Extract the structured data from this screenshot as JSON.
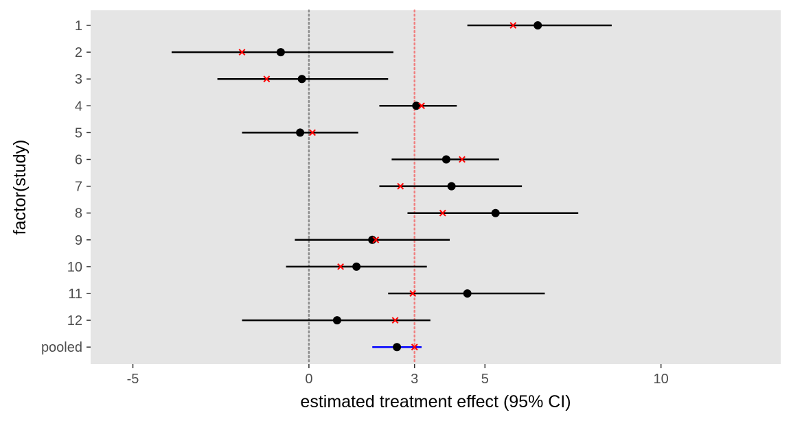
{
  "chart_data": {
    "type": "forest",
    "xlabel": "estimated treatment effect (95% CI)",
    "ylabel": "factor(study)",
    "xlim": [
      -6.2,
      13.4
    ],
    "x_ticks": [
      {
        "value": -5,
        "label": "-5"
      },
      {
        "value": 0,
        "label": "0"
      },
      {
        "value": 3,
        "label": "3"
      },
      {
        "value": 5,
        "label": "5"
      },
      {
        "value": 10,
        "label": "10"
      }
    ],
    "reference_lines": [
      {
        "name": "null-effect-line",
        "x": 0,
        "color": "#8c8c8c"
      },
      {
        "name": "pooled-estimate-line",
        "x": 3,
        "color": "#f08080"
      }
    ],
    "studies": [
      {
        "label": "1",
        "estimate": 6.5,
        "lower": 4.5,
        "upper": 8.6,
        "alt_estimate": 5.8
      },
      {
        "label": "2",
        "estimate": -0.8,
        "lower": -3.9,
        "upper": 2.4,
        "alt_estimate": -1.9
      },
      {
        "label": "3",
        "estimate": -0.2,
        "lower": -2.6,
        "upper": 2.25,
        "alt_estimate": -1.2
      },
      {
        "label": "4",
        "estimate": 3.05,
        "lower": 2.0,
        "upper": 4.2,
        "alt_estimate": 3.2
      },
      {
        "label": "5",
        "estimate": -0.25,
        "lower": -1.9,
        "upper": 1.4,
        "alt_estimate": 0.1
      },
      {
        "label": "6",
        "estimate": 3.9,
        "lower": 2.35,
        "upper": 5.4,
        "alt_estimate": 4.35
      },
      {
        "label": "7",
        "estimate": 4.05,
        "lower": 2.0,
        "upper": 6.05,
        "alt_estimate": 2.6
      },
      {
        "label": "8",
        "estimate": 5.3,
        "lower": 2.8,
        "upper": 7.65,
        "alt_estimate": 3.8
      },
      {
        "label": "9",
        "estimate": 1.8,
        "lower": -0.4,
        "upper": 4.0,
        "alt_estimate": 1.9
      },
      {
        "label": "10",
        "estimate": 1.35,
        "lower": -0.65,
        "upper": 3.35,
        "alt_estimate": 0.9
      },
      {
        "label": "11",
        "estimate": 4.5,
        "lower": 2.25,
        "upper": 6.7,
        "alt_estimate": 2.95
      },
      {
        "label": "12",
        "estimate": 0.8,
        "lower": -1.9,
        "upper": 3.45,
        "alt_estimate": 2.45
      }
    ],
    "pooled": {
      "label": "pooled",
      "estimate": 2.5,
      "lower": 1.8,
      "upper": 3.2,
      "alt_estimate": 3.0
    },
    "colors": {
      "panel_background": "#e5e5e5",
      "ci_line": "#000000",
      "pooled_ci_line": "#0000ff",
      "point": "#000000",
      "cross": "#ff0000",
      "tick_label": "#4d4d4d",
      "axis_title": "#000000"
    },
    "grid": false
  }
}
